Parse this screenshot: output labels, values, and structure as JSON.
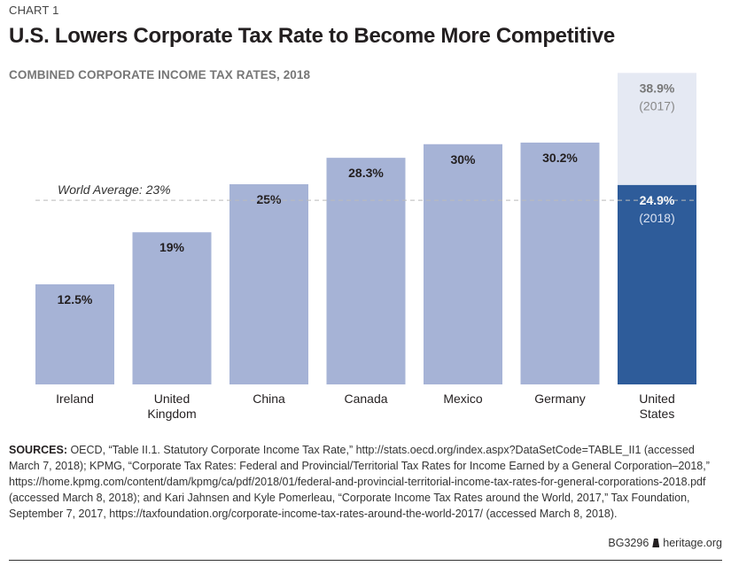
{
  "header": {
    "chart_number": "CHART 1",
    "title": "U.S. Lowers Corporate Tax Rate to Become More Competitive"
  },
  "chart_data": {
    "type": "bar",
    "title": "U.S. Lowers Corporate Tax Rate to Become More Competitive",
    "subtitle": "COMBINED CORPORATE INCOME TAX RATES, 2018",
    "xlabel": "",
    "ylabel": "",
    "ylim": [
      0,
      40
    ],
    "grid": false,
    "categories": [
      "Ireland",
      "United Kingdom",
      "China",
      "Canada",
      "Mexico",
      "Germany",
      "United States"
    ],
    "category_lines": [
      [
        "Ireland"
      ],
      [
        "United",
        "Kingdom"
      ],
      [
        "China"
      ],
      [
        "Canada"
      ],
      [
        "Mexico"
      ],
      [
        "Germany"
      ],
      [
        "United",
        "States"
      ]
    ],
    "values": [
      12.5,
      19,
      25,
      28.3,
      30,
      30.2,
      24.9
    ],
    "value_labels": [
      "12.5%",
      "19%",
      "25%",
      "28.3%",
      "30%",
      "30.2%",
      "24.9%"
    ],
    "highlight": {
      "category": "United States",
      "value_2018": 24.9,
      "label_2018": "24.9%",
      "year_2018": "(2018)",
      "value_2017": 38.9,
      "label_2017": "38.9%",
      "year_2017": "(2017)"
    },
    "reference_line": {
      "label": "World Average: 23%",
      "value": 23
    },
    "colors": {
      "bar": "#a6b3d6",
      "highlight_2018": "#2e5c9a",
      "highlight_2017": "#e5e9f3",
      "reference_line": "#bbbbbb",
      "value_text": "#231f20",
      "highlight_text": "#ffffff",
      "ghost_text": "#777777"
    }
  },
  "sources": {
    "label": "SOURCES:",
    "text": " OECD, “Table II.1. Statutory Corporate Income Tax Rate,” http://stats.oecd.org/index.aspx?DataSetCode=TABLE_II1 (accessed March 7, 2018); KPMG, “Corporate Tax Rates: Federal and Provincial/Territorial Tax Rates for Income Earned by a General Corporation–2018,” https://home.kpmg.com/content/dam/kpmg/ca/pdf/2018/01/federal-and-provincial-territorial-income-tax-rates-for-general-corporations-2018.pdf (accessed March 8, 2018); and Kari Jahnsen and Kyle Pomerleau, “Corporate Income Tax Rates around the World, 2017,” Tax Foundation, September 7, 2017, https://taxfoundation.org/corporate-income-tax-rates-around-the-world-2017/ (accessed March 8, 2018)."
  },
  "footer": {
    "code": "BG3296",
    "icon": "liberty-bell-icon",
    "site": "heritage.org"
  }
}
